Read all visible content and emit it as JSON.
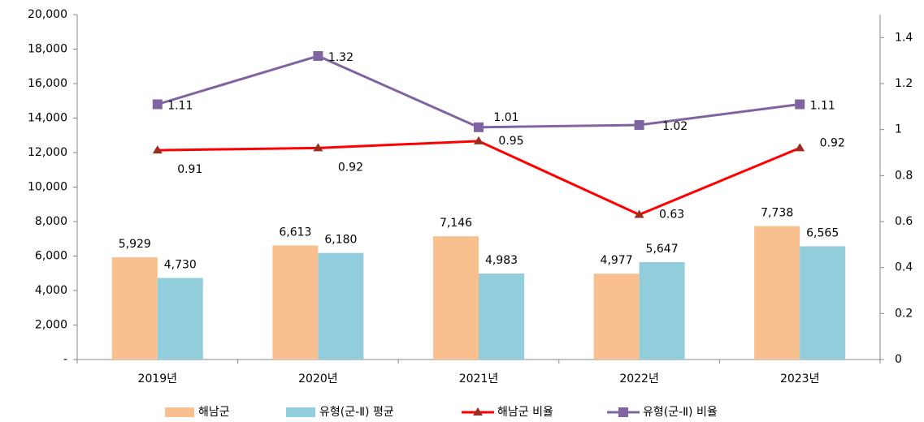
{
  "chart_data": {
    "type": "bar",
    "categories": [
      "2019년",
      "2020년",
      "2021년",
      "2022년",
      "2023년"
    ],
    "ylim": [
      0,
      20000
    ],
    "yticks": [
      {
        "value": 0,
        "label": "-"
      },
      {
        "value": 2000,
        "label": "2,000"
      },
      {
        "value": 4000,
        "label": "4,000"
      },
      {
        "value": 6000,
        "label": "6,000"
      },
      {
        "value": 8000,
        "label": "8,000"
      },
      {
        "value": 10000,
        "label": "10,000"
      },
      {
        "value": 12000,
        "label": "12,000"
      },
      {
        "value": 14000,
        "label": "14,000"
      },
      {
        "value": 16000,
        "label": "16,000"
      },
      {
        "value": 18000,
        "label": "18,000"
      },
      {
        "value": 20000,
        "label": "20,000"
      }
    ],
    "y2lim": [
      0,
      1.5
    ],
    "y2ticks": [
      0,
      0.2,
      0.4,
      0.6,
      0.8,
      1,
      1.2,
      1.4
    ],
    "grid": false,
    "legend": "bottom",
    "series": [
      {
        "name": "해남군",
        "type": "bar",
        "color": "#f9c08f",
        "values": [
          5929,
          6613,
          7146,
          4977,
          7738
        ],
        "value_labels": [
          "5,929",
          "6,613",
          "7,146",
          "4,977",
          "7,738"
        ]
      },
      {
        "name": "유형(군-Ⅱ) 평균",
        "type": "bar",
        "color": "#92cddc",
        "values": [
          4730,
          6180,
          4983,
          5647,
          6565
        ],
        "value_labels": [
          "4,730",
          "6,180",
          "4,983",
          "5,647",
          "6,565"
        ]
      },
      {
        "name": "해남군 비율",
        "type": "line",
        "axis": "y2",
        "color": "#ff0000",
        "marker_color": "#9b2d1f",
        "values": [
          0.91,
          0.92,
          0.95,
          0.63,
          0.92
        ]
      },
      {
        "name": "유형(군-Ⅱ) 비율",
        "type": "line",
        "axis": "y2",
        "color": "#8064a2",
        "marker_color": "#8064a2",
        "values": [
          1.11,
          1.32,
          1.01,
          1.02,
          1.11
        ]
      }
    ]
  }
}
